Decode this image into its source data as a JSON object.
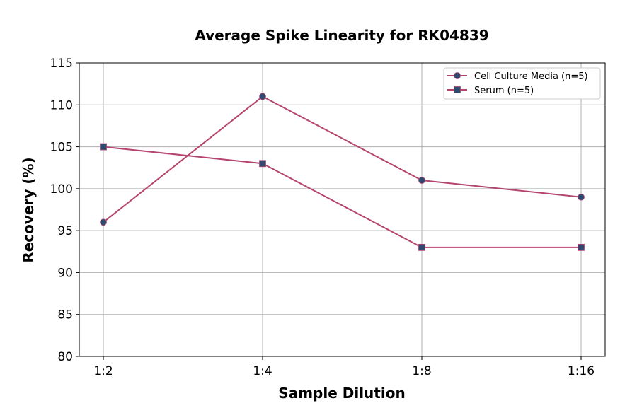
{
  "chart_data": {
    "type": "line",
    "title": "Average Spike Linearity for RK04839",
    "xlabel": "Sample Dilution",
    "ylabel": "Recovery (%)",
    "categories": [
      "1:2",
      "1:4",
      "1:8",
      "1:16"
    ],
    "ylim": [
      80,
      115
    ],
    "yticks": [
      80,
      85,
      90,
      95,
      100,
      105,
      110,
      115
    ],
    "grid": true,
    "legend_position": "top-right",
    "series": [
      {
        "name": "Cell Culture Media (n=5)",
        "marker": "circle",
        "values": [
          96,
          111,
          101,
          99
        ]
      },
      {
        "name": "Serum (n=5)",
        "marker": "square",
        "values": [
          105,
          103,
          93,
          93
        ]
      }
    ],
    "colors": {
      "line": "#b5446e",
      "marker": "#2e4a70"
    }
  }
}
